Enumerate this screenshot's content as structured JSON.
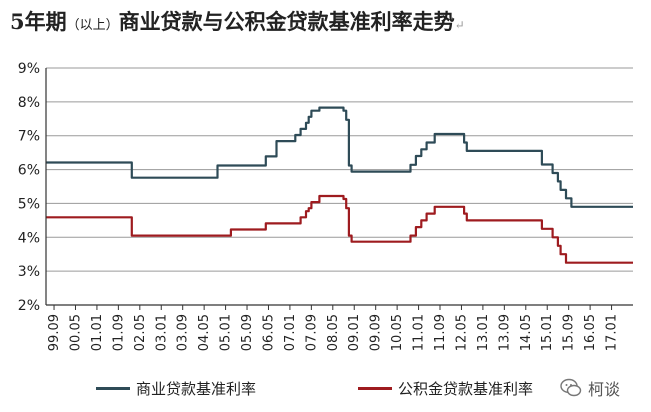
{
  "title": {
    "main": "5年期",
    "paren": "（以上）",
    "rest": "商业贷款与公积金贷款基准利率走势",
    "mark": "↵"
  },
  "watermark": {
    "text": "柯谈",
    "icon": "wechat-bubble-icon"
  },
  "colors": {
    "commercial": "#2e4b57",
    "provident": "#9e1b1f",
    "grid": "#9a9a9a",
    "axis": "#333333"
  },
  "chart_data": {
    "type": "line",
    "title": "5年期（以上）商业贷款与公积金贷款基准利率走势",
    "xlabel": "",
    "ylabel": "",
    "ylim": [
      2,
      9
    ],
    "yticks": [
      "2%",
      "3%",
      "4%",
      "5%",
      "6%",
      "7%",
      "8%",
      "9%"
    ],
    "xticks": [
      "99.09",
      "00.05",
      "01.01",
      "01.09",
      "02.05",
      "03.01",
      "03.09",
      "04.05",
      "05.01",
      "05.09",
      "06.05",
      "07.01",
      "07.09",
      "08.05",
      "09.01",
      "09.09",
      "10.05",
      "11.01",
      "11.09",
      "12.05",
      "13.01",
      "13.09",
      "14.05",
      "15.01",
      "15.09",
      "16.05",
      "17.01"
    ],
    "grid": "horizontal",
    "legend": "bottom",
    "series": [
      {
        "name": "商业贷款基准利率",
        "steps": [
          [
            "1999-06",
            6.21
          ],
          [
            "2002-02",
            5.76
          ],
          [
            "2004-10",
            6.12
          ],
          [
            "2006-04",
            6.39
          ],
          [
            "2006-08",
            6.84
          ],
          [
            "2007-03",
            7.02
          ],
          [
            "2007-05",
            7.2
          ],
          [
            "2007-07",
            7.38
          ],
          [
            "2007-08",
            7.56
          ],
          [
            "2007-09",
            7.74
          ],
          [
            "2007-12",
            7.83
          ],
          [
            "2008-09",
            7.74
          ],
          [
            "2008-10",
            7.47
          ],
          [
            "2008-11",
            6.12
          ],
          [
            "2008-12",
            5.94
          ],
          [
            "2010-10",
            6.14
          ],
          [
            "2010-12",
            6.4
          ],
          [
            "2011-02",
            6.6
          ],
          [
            "2011-04",
            6.8
          ],
          [
            "2011-07",
            7.05
          ],
          [
            "2012-06",
            6.8
          ],
          [
            "2012-07",
            6.55
          ],
          [
            "2014-11",
            6.15
          ],
          [
            "2015-03",
            5.9
          ],
          [
            "2015-05",
            5.65
          ],
          [
            "2015-06",
            5.4
          ],
          [
            "2015-08",
            5.15
          ],
          [
            "2015-10",
            4.9
          ],
          [
            "2017-09",
            4.9
          ]
        ]
      },
      {
        "name": "公积金贷款基准利率",
        "steps": [
          [
            "1999-06",
            4.59
          ],
          [
            "2002-02",
            4.05
          ],
          [
            "2005-03",
            4.23
          ],
          [
            "2006-04",
            4.41
          ],
          [
            "2007-05",
            4.59
          ],
          [
            "2007-07",
            4.77
          ],
          [
            "2007-08",
            4.86
          ],
          [
            "2007-09",
            5.04
          ],
          [
            "2007-12",
            5.22
          ],
          [
            "2008-09",
            5.13
          ],
          [
            "2008-10",
            4.86
          ],
          [
            "2008-11",
            4.05
          ],
          [
            "2008-12",
            3.87
          ],
          [
            "2010-10",
            4.05
          ],
          [
            "2010-12",
            4.3
          ],
          [
            "2011-02",
            4.5
          ],
          [
            "2011-04",
            4.7
          ],
          [
            "2011-07",
            4.9
          ],
          [
            "2012-06",
            4.7
          ],
          [
            "2012-07",
            4.5
          ],
          [
            "2014-11",
            4.25
          ],
          [
            "2015-03",
            4.0
          ],
          [
            "2015-05",
            3.75
          ],
          [
            "2015-06",
            3.5
          ],
          [
            "2015-08",
            3.25
          ],
          [
            "2017-09",
            3.25
          ]
        ]
      }
    ]
  }
}
